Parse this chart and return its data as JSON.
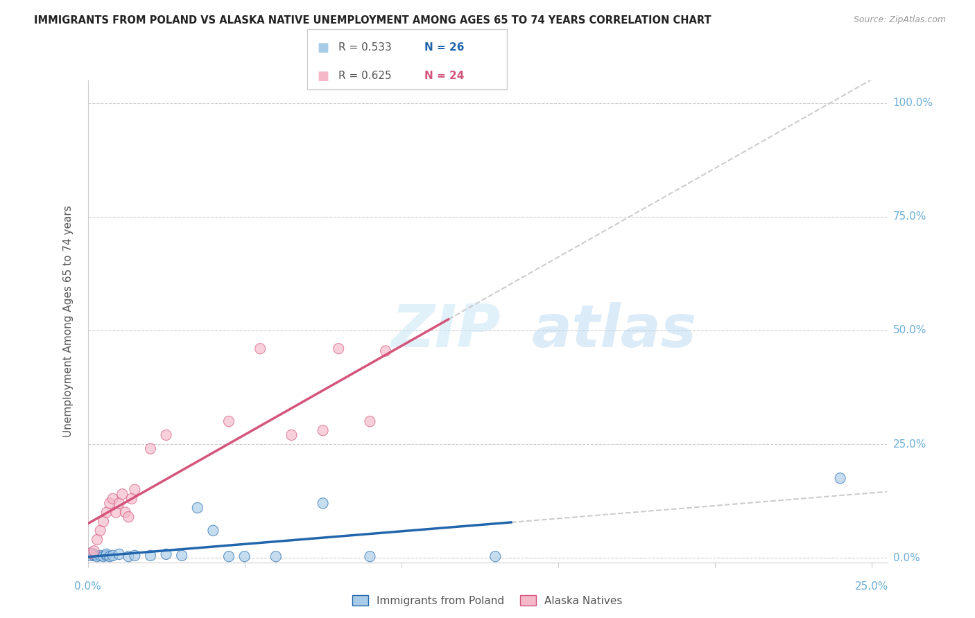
{
  "title": "IMMIGRANTS FROM POLAND VS ALASKA NATIVE UNEMPLOYMENT AMONG AGES 65 TO 74 YEARS CORRELATION CHART",
  "source": "Source: ZipAtlas.com",
  "ylabel": "Unemployment Among Ages 65 to 74 years",
  "ytick_labels": [
    "0.0%",
    "25.0%",
    "50.0%",
    "75.0%",
    "100.0%"
  ],
  "xtick_label_left": "0.0%",
  "xtick_label_right": "25.0%",
  "legend_label1": "Immigrants from Poland",
  "legend_label2": "Alaska Natives",
  "R1": "0.533",
  "N1": "26",
  "R2": "0.625",
  "N2": "24",
  "color_blue_scatter": "#a8cce8",
  "color_pink_scatter": "#f4b8c8",
  "color_blue_line": "#2166ac",
  "color_pink_line": "#d4547a",
  "color_dashed": "#cccccc",
  "color_grid": "#cccccc",
  "xlim": [
    0.0,
    0.255
  ],
  "ylim": [
    -0.01,
    1.05
  ],
  "poland_x": [
    0.001,
    0.001,
    0.002,
    0.002,
    0.003,
    0.004,
    0.005,
    0.006,
    0.006,
    0.007,
    0.008,
    0.01,
    0.013,
    0.015,
    0.02,
    0.025,
    0.03,
    0.035,
    0.04,
    0.045,
    0.05,
    0.06,
    0.075,
    0.09,
    0.13,
    0.24
  ],
  "poland_y": [
    0.005,
    0.01,
    0.005,
    0.008,
    0.003,
    0.005,
    0.003,
    0.005,
    0.008,
    0.003,
    0.005,
    0.008,
    0.003,
    0.005,
    0.005,
    0.008,
    0.005,
    0.11,
    0.06,
    0.003,
    0.003,
    0.003,
    0.12,
    0.003,
    0.003,
    0.175
  ],
  "alaska_x": [
    0.001,
    0.002,
    0.003,
    0.004,
    0.005,
    0.006,
    0.007,
    0.008,
    0.009,
    0.01,
    0.011,
    0.012,
    0.013,
    0.014,
    0.015,
    0.02,
    0.025,
    0.045,
    0.055,
    0.065,
    0.075,
    0.08,
    0.09,
    0.095
  ],
  "alaska_y": [
    0.01,
    0.015,
    0.04,
    0.06,
    0.08,
    0.1,
    0.12,
    0.13,
    0.1,
    0.12,
    0.14,
    0.1,
    0.09,
    0.13,
    0.15,
    0.24,
    0.27,
    0.3,
    0.46,
    0.27,
    0.28,
    0.46,
    0.3,
    0.455
  ]
}
